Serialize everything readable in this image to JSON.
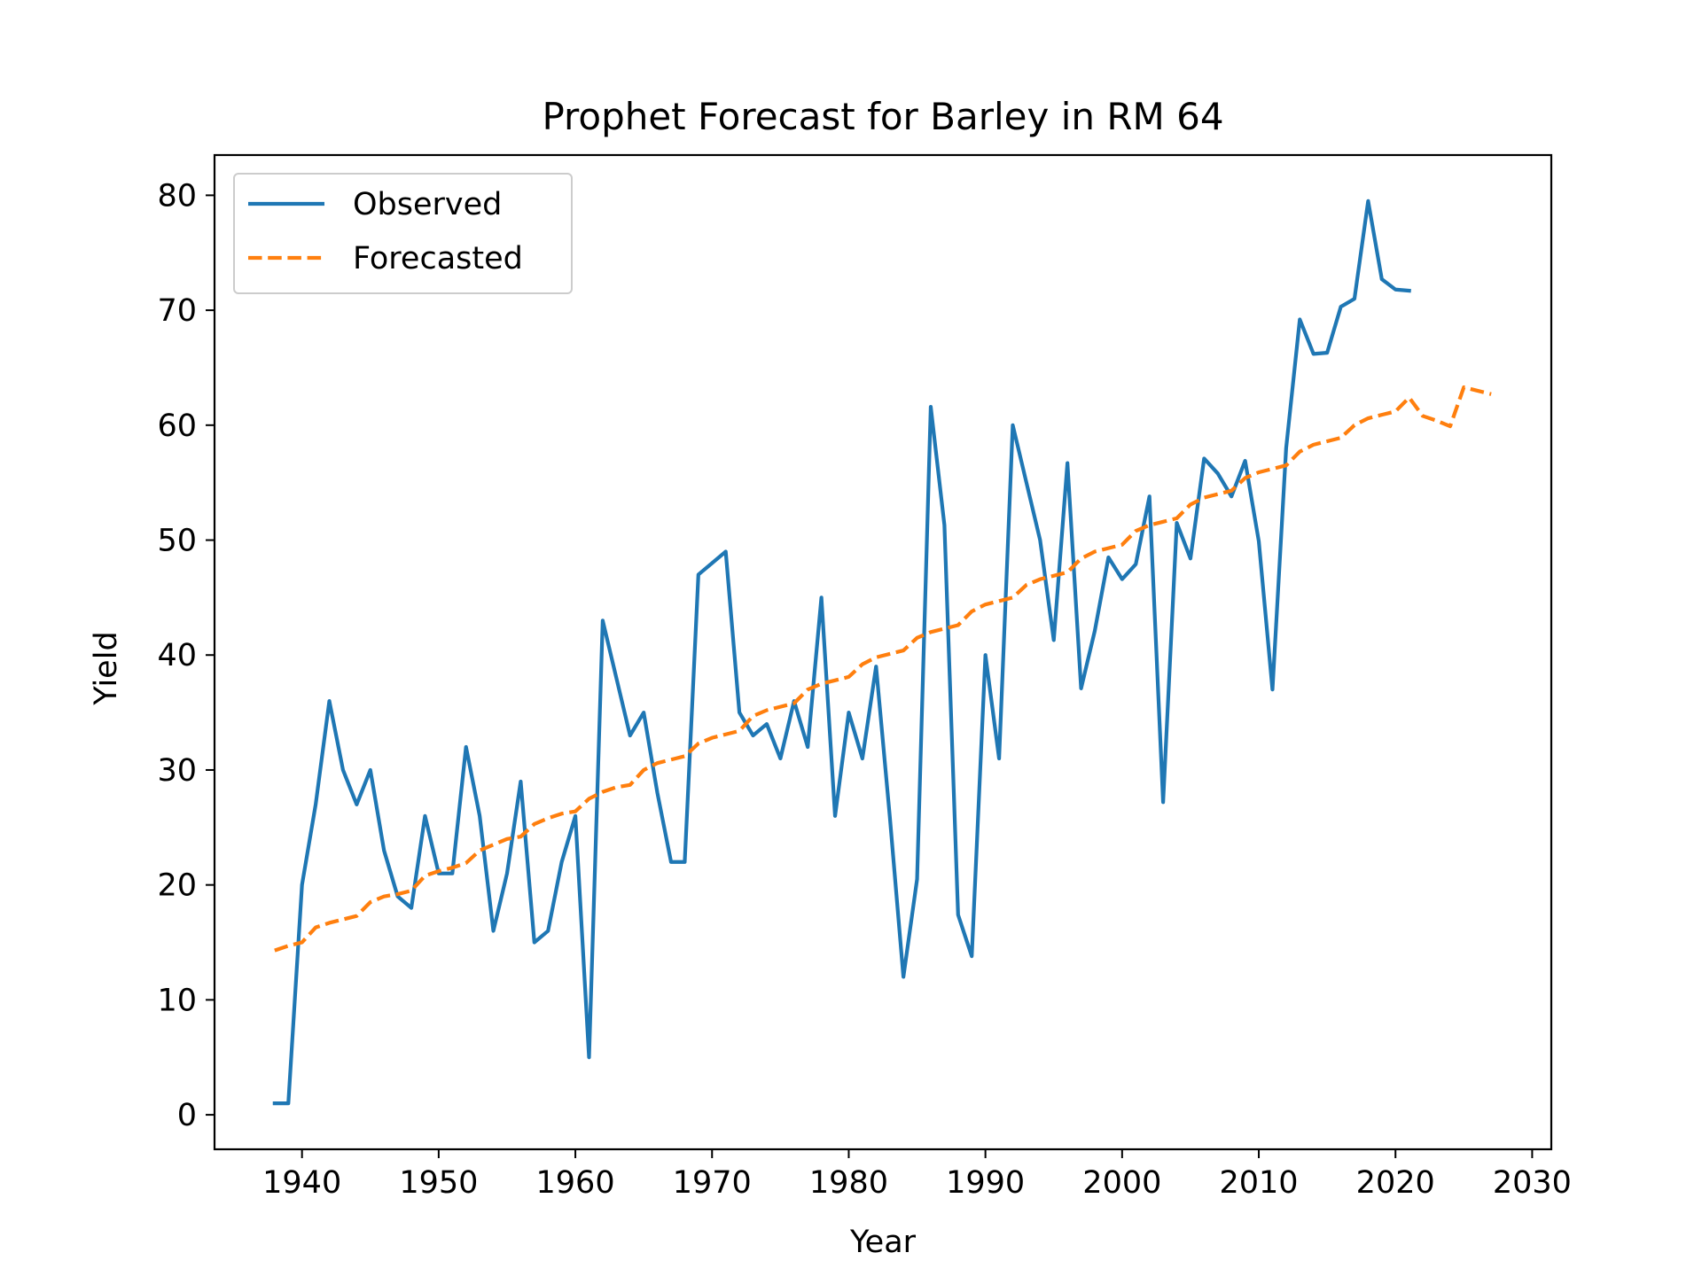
{
  "chart_data": {
    "type": "line",
    "title": "Prophet Forecast for Barley in RM 64",
    "xlabel": "Year",
    "ylabel": "Yield",
    "xlim": [
      1933.6,
      2031.4
    ],
    "ylim": [
      -3,
      83.5
    ],
    "xticks": [
      1940,
      1950,
      1960,
      1970,
      1980,
      1990,
      2000,
      2010,
      2020,
      2030
    ],
    "yticks": [
      0,
      10,
      20,
      30,
      40,
      50,
      60,
      70,
      80
    ],
    "grid": false,
    "legend_position": "upper left",
    "series": [
      {
        "name": "Observed",
        "color": "#1f77b4",
        "style": "solid",
        "x": [
          1938,
          1939,
          1940,
          1941,
          1942,
          1943,
          1944,
          1945,
          1946,
          1947,
          1948,
          1949,
          1950,
          1951,
          1952,
          1953,
          1954,
          1955,
          1956,
          1957,
          1958,
          1959,
          1960,
          1961,
          1962,
          1963,
          1964,
          1965,
          1966,
          1967,
          1968,
          1969,
          1970,
          1971,
          1972,
          1973,
          1974,
          1975,
          1976,
          1977,
          1978,
          1979,
          1980,
          1981,
          1982,
          1983,
          1984,
          1985,
          1986,
          1987,
          1988,
          1989,
          1990,
          1991,
          1992,
          1993,
          1994,
          1995,
          1996,
          1997,
          1998,
          1999,
          2000,
          2001,
          2002,
          2003,
          2004,
          2005,
          2006,
          2007,
          2008,
          2009,
          2010,
          2011,
          2012,
          2013,
          2014,
          2015,
          2016,
          2017,
          2018,
          2019,
          2020,
          2021
        ],
        "y": [
          1,
          1,
          20,
          27,
          36,
          30,
          27,
          30,
          23,
          19,
          18,
          26,
          21,
          21,
          32,
          26,
          16,
          21,
          29,
          15,
          16,
          22,
          26,
          5,
          43,
          38,
          33,
          35,
          28,
          22,
          22,
          47,
          48,
          49,
          35,
          33,
          34,
          31,
          36,
          32,
          45,
          26,
          35,
          31,
          39,
          26,
          12,
          20.5,
          61.6,
          51.3,
          17.4,
          13.8,
          40,
          31,
          60,
          55,
          50,
          41.3,
          56.7,
          37.1,
          42.1,
          48.5,
          46.6,
          47.9,
          53.8,
          27.2,
          51.5,
          48.4,
          57.1,
          55.8,
          53.8,
          56.9,
          49.9,
          37,
          58,
          69.2,
          66.2,
          66.3,
          70.3,
          71,
          79.5,
          72.7,
          71.8,
          71.7
        ]
      },
      {
        "name": "Forecasted",
        "color": "#ff7f0e",
        "style": "dashed",
        "x": [
          1938,
          1939,
          1940,
          1941,
          1942,
          1943,
          1944,
          1945,
          1946,
          1947,
          1948,
          1949,
          1950,
          1951,
          1952,
          1953,
          1954,
          1955,
          1956,
          1957,
          1958,
          1959,
          1960,
          1961,
          1962,
          1963,
          1964,
          1965,
          1966,
          1967,
          1968,
          1969,
          1970,
          1971,
          1972,
          1973,
          1974,
          1975,
          1976,
          1977,
          1978,
          1979,
          1980,
          1981,
          1982,
          1983,
          1984,
          1985,
          1986,
          1987,
          1988,
          1989,
          1990,
          1991,
          1992,
          1993,
          1994,
          1995,
          1996,
          1997,
          1998,
          1999,
          2000,
          2001,
          2002,
          2003,
          2004,
          2005,
          2006,
          2007,
          2008,
          2009,
          2010,
          2011,
          2012,
          2013,
          2014,
          2015,
          2016,
          2017,
          2018,
          2019,
          2020,
          2021,
          2022,
          2023,
          2024,
          2025,
          2026,
          2027
        ],
        "y": [
          14.3,
          14.7,
          15,
          16.3,
          16.7,
          17,
          17.3,
          18.5,
          19,
          19.2,
          19.5,
          20.8,
          21.2,
          21.5,
          21.9,
          23,
          23.5,
          24,
          24.2,
          25.3,
          25.8,
          26.2,
          26.4,
          27.5,
          28.1,
          28.5,
          28.7,
          30,
          30.6,
          30.9,
          31.2,
          32.3,
          32.8,
          33.1,
          33.4,
          34.7,
          35.2,
          35.5,
          35.8,
          37,
          37.5,
          37.8,
          38.1,
          39.2,
          39.8,
          40.1,
          40.4,
          41.5,
          42,
          42.3,
          42.6,
          43.8,
          44.4,
          44.7,
          45,
          46.1,
          46.6,
          46.9,
          47.2,
          48.4,
          49,
          49.3,
          49.6,
          50.8,
          51.3,
          51.6,
          51.9,
          53.1,
          53.7,
          54,
          54.3,
          55.4,
          55.9,
          56.2,
          56.5,
          57.7,
          58.3,
          58.6,
          58.9,
          60,
          60.6,
          60.9,
          61.2,
          62.4,
          60.8,
          60.4,
          59.9,
          63.3,
          63,
          62.7
        ]
      }
    ]
  }
}
